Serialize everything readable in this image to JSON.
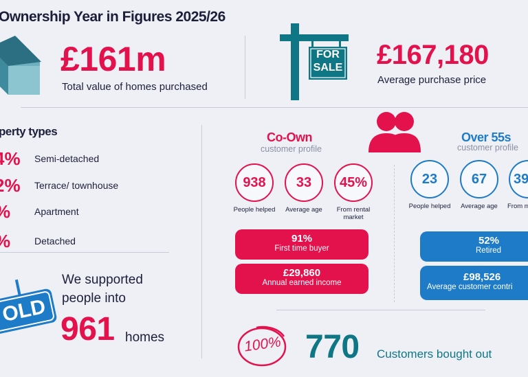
{
  "title": "Ownership Year in Figures 2025/26",
  "total_value": {
    "value": "£161m",
    "label": "Total value of homes purchased"
  },
  "avg_price": {
    "value": "£167,180",
    "label": "Average purchase price"
  },
  "for_sale_sign": {
    "line1": "FOR",
    "line2": "SALE"
  },
  "property_types": {
    "heading": "perty types",
    "items": [
      {
        "pct": "4%",
        "label": "Semi-detached"
      },
      {
        "pct": "2%",
        "label": "Terrace/ townhouse"
      },
      {
        "pct": "%",
        "label": "Apartment"
      },
      {
        "pct": "%",
        "label": "Detached"
      }
    ]
  },
  "sold_sign": "OLD",
  "supported": {
    "line1": "We supported",
    "line2": "people into",
    "number": "961",
    "suffix": "homes"
  },
  "coown": {
    "title": "Co-Own",
    "subtitle": "customer profile",
    "stats": [
      {
        "value": "938",
        "label": "People helped"
      },
      {
        "value": "33",
        "label": "Average age"
      },
      {
        "value": "45%",
        "label": "From rental market"
      }
    ],
    "pills": [
      {
        "value": "91%",
        "label": "First time buyer"
      },
      {
        "value": "£29,860",
        "label": "Annual earned income"
      }
    ]
  },
  "over55": {
    "title": "Over 55s",
    "subtitle": "customer profile",
    "stats": [
      {
        "value": "23",
        "label": "People helped"
      },
      {
        "value": "67",
        "label": "Average age"
      },
      {
        "value": "39",
        "label": "From ma"
      }
    ],
    "pills": [
      {
        "value": "52%",
        "label": "Retired"
      },
      {
        "value": "£98,526",
        "label": "Average customer contri"
      }
    ]
  },
  "bought_out": {
    "badge": "100%",
    "number": "770",
    "label": "Customers bought out"
  },
  "colors": {
    "pink": "#e3124d",
    "blue": "#1e7bc7",
    "teal": "#0f7685"
  }
}
